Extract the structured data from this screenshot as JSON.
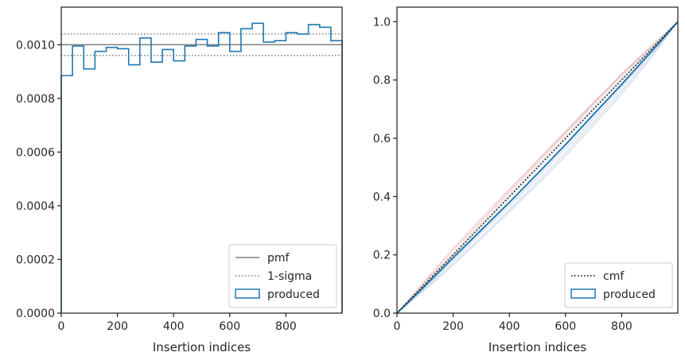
{
  "colors": {
    "produced": "#1f77b4",
    "pmf": "#808080",
    "sigma": "#808080",
    "cmf": "#000000",
    "frame": "#262626",
    "faint_red": "#e8b8b8",
    "faint_blue": "#b8c8e0",
    "faint_grey": "#cfcfcf"
  },
  "chart_data": [
    {
      "type": "histogram",
      "xlabel": "Insertion indices",
      "ylabel": "",
      "xlim": [
        0,
        1000
      ],
      "ylim": [
        0,
        0.00114
      ],
      "xticks": [
        0,
        200,
        400,
        600,
        800
      ],
      "xtick_labels": [
        "0",
        "200",
        "400",
        "600",
        "800"
      ],
      "yticks": [
        0,
        0.0002,
        0.0004,
        0.0006,
        0.0008,
        0.001
      ],
      "ytick_labels": [
        "0.0000",
        "0.0002",
        "0.0004",
        "0.0006",
        "0.0008",
        "0.0010"
      ],
      "legend": {
        "position": "lower right",
        "entries": [
          {
            "label": "pmf",
            "style": "solid-line"
          },
          {
            "label": "1-sigma",
            "style": "dotted-line"
          },
          {
            "label": "produced",
            "style": "step-patch"
          }
        ]
      },
      "pmf": 0.001,
      "sigma_band": [
        0.00096,
        0.00104
      ],
      "bin_width": 40,
      "bin_starts": [
        0,
        40,
        80,
        120,
        160,
        200,
        240,
        280,
        320,
        360,
        400,
        440,
        480,
        520,
        560,
        600,
        640,
        680,
        720,
        760,
        800,
        840,
        880,
        920,
        960
      ],
      "produced": [
        0.000885,
        0.000995,
        0.00091,
        0.000975,
        0.00099,
        0.000985,
        0.000925,
        0.001025,
        0.000935,
        0.000982,
        0.00094,
        0.000995,
        0.00102,
        0.000995,
        0.001045,
        0.000975,
        0.00106,
        0.00108,
        0.00101,
        0.001015,
        0.001045,
        0.00104,
        0.001075,
        0.001065,
        0.001015
      ]
    },
    {
      "type": "line",
      "xlabel": "Insertion indices",
      "ylabel": "",
      "xlim": [
        0,
        1000
      ],
      "ylim": [
        0,
        1.05
      ],
      "xticks": [
        0,
        200,
        400,
        600,
        800
      ],
      "xtick_labels": [
        "0",
        "200",
        "400",
        "600",
        "800"
      ],
      "yticks": [
        0,
        0.2,
        0.4,
        0.6,
        0.8,
        1.0
      ],
      "ytick_labels": [
        "0.0",
        "0.2",
        "0.4",
        "0.6",
        "0.8",
        "1.0"
      ],
      "legend": {
        "position": "lower right",
        "entries": [
          {
            "label": "cmf",
            "style": "dotted-line"
          },
          {
            "label": "produced",
            "style": "step-patch"
          }
        ]
      },
      "series": [
        {
          "label": "cmf",
          "x": [
            0,
            1000
          ],
          "y": [
            0,
            1.0
          ]
        },
        {
          "label": "produced",
          "x": [
            0,
            100,
            200,
            300,
            400,
            500,
            600,
            700,
            800,
            900,
            1000
          ],
          "y": [
            0,
            0.094,
            0.19,
            0.285,
            0.38,
            0.478,
            0.578,
            0.682,
            0.785,
            0.892,
            1.0
          ]
        }
      ],
      "faint_series": [
        {
          "tone": "red",
          "x": [
            0,
            100,
            200,
            300,
            400,
            500,
            600,
            700,
            800,
            900,
            1000
          ],
          "y": [
            0,
            0.108,
            0.215,
            0.318,
            0.42,
            0.52,
            0.62,
            0.72,
            0.818,
            0.91,
            1.0
          ]
        },
        {
          "tone": "red",
          "x": [
            0,
            100,
            200,
            300,
            400,
            500,
            600,
            700,
            800,
            900,
            1000
          ],
          "y": [
            0,
            0.112,
            0.222,
            0.325,
            0.425,
            0.525,
            0.625,
            0.724,
            0.822,
            0.912,
            1.0
          ]
        },
        {
          "tone": "red",
          "x": [
            0,
            100,
            200,
            300,
            400,
            500,
            600,
            700,
            800,
            900,
            1000
          ],
          "y": [
            0,
            0.104,
            0.205,
            0.31,
            0.412,
            0.515,
            0.616,
            0.716,
            0.815,
            0.908,
            1.0
          ]
        },
        {
          "tone": "blue",
          "x": [
            0,
            100,
            200,
            300,
            400,
            500,
            600,
            700,
            800,
            900,
            1000
          ],
          "y": [
            0,
            0.085,
            0.172,
            0.262,
            0.355,
            0.45,
            0.55,
            0.656,
            0.762,
            0.878,
            1.0
          ]
        },
        {
          "tone": "blue",
          "x": [
            0,
            100,
            200,
            300,
            400,
            500,
            600,
            700,
            800,
            900,
            1000
          ],
          "y": [
            0,
            0.08,
            0.165,
            0.255,
            0.348,
            0.442,
            0.54,
            0.645,
            0.752,
            0.87,
            1.0
          ]
        },
        {
          "tone": "blue",
          "x": [
            0,
            100,
            200,
            300,
            400,
            500,
            600,
            700,
            800,
            900,
            1000
          ],
          "y": [
            0,
            0.09,
            0.182,
            0.275,
            0.368,
            0.465,
            0.565,
            0.668,
            0.775,
            0.885,
            1.0
          ]
        },
        {
          "tone": "grey",
          "x": [
            0,
            100,
            200,
            300,
            400,
            500,
            600,
            700,
            800,
            900,
            1000
          ],
          "y": [
            0,
            0.1,
            0.2,
            0.302,
            0.402,
            0.505,
            0.606,
            0.706,
            0.806,
            0.903,
            1.0
          ]
        },
        {
          "tone": "grey",
          "x": [
            0,
            100,
            200,
            300,
            400,
            500,
            600,
            700,
            800,
            900,
            1000
          ],
          "y": [
            0,
            0.096,
            0.196,
            0.296,
            0.396,
            0.496,
            0.596,
            0.698,
            0.8,
            0.9,
            1.0
          ]
        }
      ]
    }
  ]
}
